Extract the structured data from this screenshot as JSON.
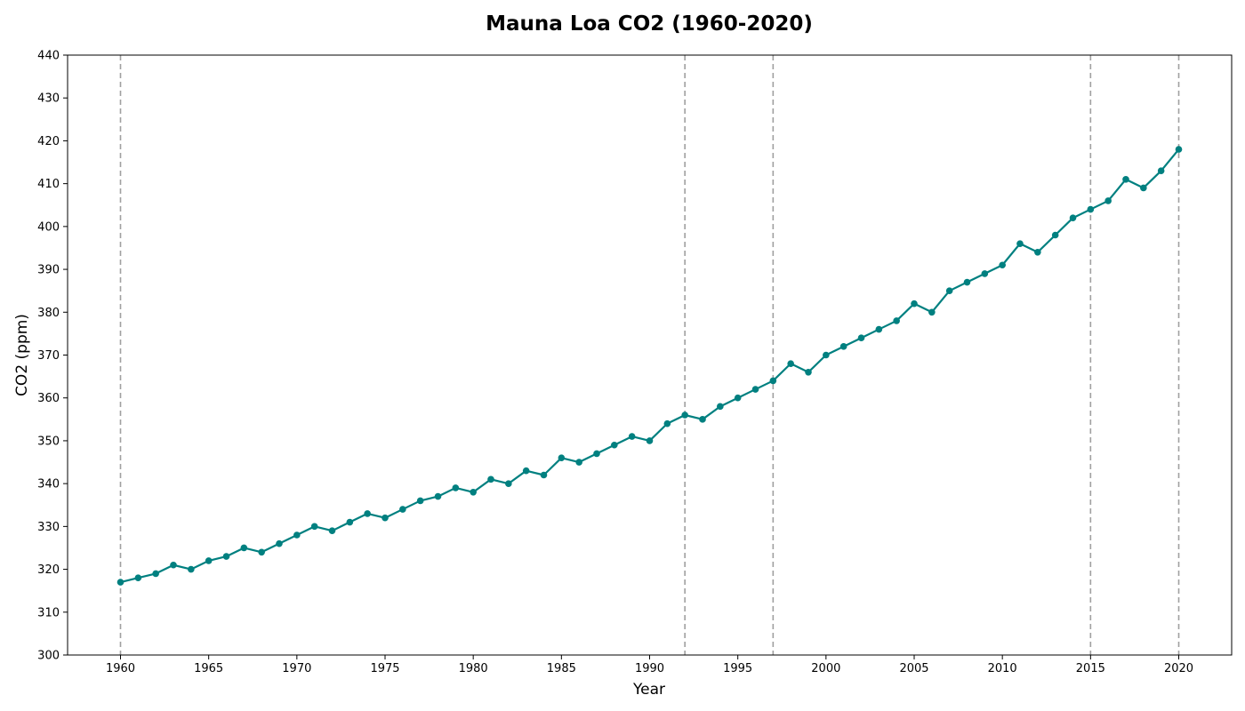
{
  "chart_data": {
    "type": "line",
    "title": "Mauna Loa CO2 (1960-2020)",
    "xlabel": "Year",
    "ylabel": "CO2 (ppm)",
    "xlim": [
      1957,
      2023
    ],
    "ylim": [
      300,
      440
    ],
    "x_ticks": [
      "1960",
      "1965",
      "1970",
      "1975",
      "1980",
      "1985",
      "1990",
      "1995",
      "2000",
      "2005",
      "2010",
      "2015",
      "2020"
    ],
    "y_ticks": [
      "300",
      "310",
      "320",
      "330",
      "340",
      "350",
      "360",
      "370",
      "380",
      "390",
      "400",
      "410",
      "420",
      "430",
      "440"
    ],
    "grid": false,
    "series": [
      {
        "color": "#008080",
        "marker": "circle",
        "x": [
          1960,
          1961,
          1962,
          1963,
          1964,
          1965,
          1966,
          1967,
          1968,
          1969,
          1970,
          1971,
          1972,
          1973,
          1974,
          1975,
          1976,
          1977,
          1978,
          1979,
          1980,
          1981,
          1982,
          1983,
          1984,
          1985,
          1986,
          1987,
          1988,
          1989,
          1990,
          1991,
          1992,
          1993,
          1994,
          1995,
          1996,
          1997,
          1998,
          1999,
          2000,
          2001,
          2002,
          2003,
          2004,
          2005,
          2006,
          2007,
          2008,
          2009,
          2010,
          2011,
          2012,
          2013,
          2014,
          2015,
          2016,
          2017,
          2018,
          2019,
          2020
        ],
        "y": [
          317,
          318,
          319,
          321,
          320,
          322,
          323,
          325,
          324,
          326,
          328,
          330,
          329,
          331,
          333,
          332,
          334,
          336,
          337,
          339,
          338,
          341,
          340,
          343,
          342,
          346,
          345,
          347,
          349,
          351,
          350,
          354,
          356,
          355,
          358,
          360,
          362,
          364,
          368,
          366,
          370,
          372,
          374,
          376,
          378,
          382,
          380,
          385,
          387,
          389,
          391,
          396,
          394,
          398,
          402,
          404,
          406,
          411,
          409,
          413,
          418
        ]
      }
    ],
    "vertical_markers": {
      "x": [
        1960,
        1992,
        1997,
        2015,
        2020
      ],
      "color": "#a0a0a0",
      "style": "dashed"
    }
  }
}
